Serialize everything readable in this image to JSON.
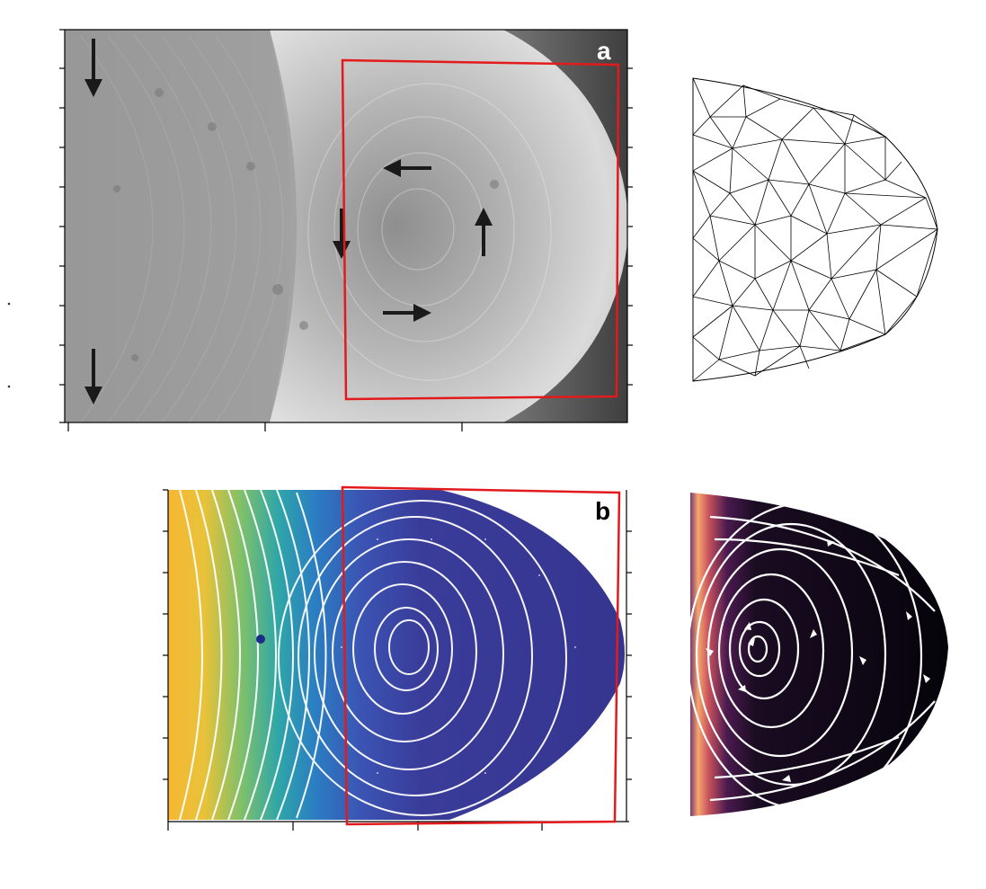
{
  "panels": {
    "a": {
      "label": "a",
      "label_color": "#ffffff"
    },
    "b": {
      "label": "b",
      "label_color": "#000000"
    }
  },
  "colors": {
    "highlight_box": "#e31a1c",
    "mesh_stroke": "#000000",
    "streamline": "#ffffff",
    "field_low": "#2e2a8f",
    "field_high": "#f7b733",
    "magma_dark": "#0d0716",
    "magma_bright": "#f6a66c"
  },
  "icons": {
    "flow_arrow": "arrow-icon",
    "stray_marks": "dot-mark"
  }
}
